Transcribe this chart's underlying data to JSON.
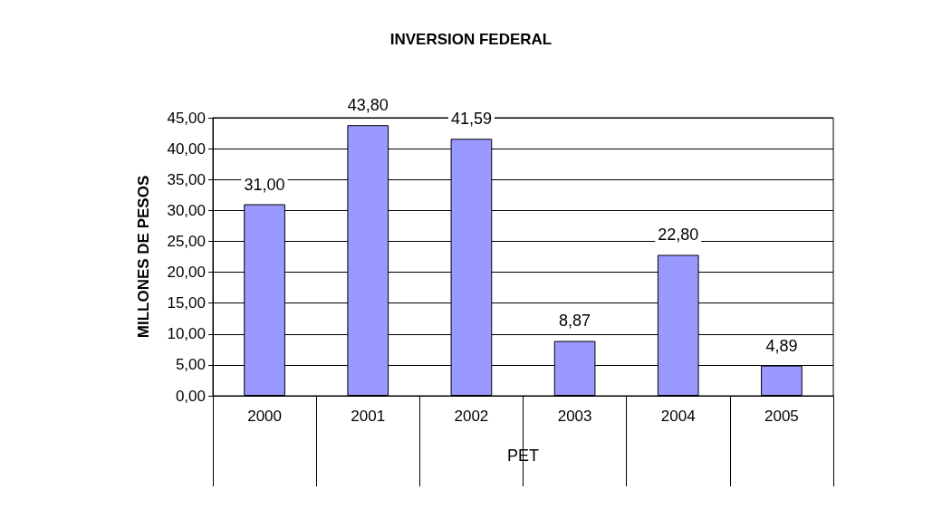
{
  "chart_data": {
    "type": "bar",
    "title": "INVERSION FEDERAL",
    "xlabel": "PET",
    "ylabel": "MILLONES DE PESOS",
    "categories": [
      "2000",
      "2001",
      "2002",
      "2003",
      "2004",
      "2005"
    ],
    "values": [
      31.0,
      43.8,
      41.59,
      8.87,
      22.8,
      4.89
    ],
    "value_labels": [
      "31,00",
      "43,80",
      "41,59",
      "8,87",
      "22,80",
      "4,89"
    ],
    "color": "#9999ff",
    "ylim": [
      0,
      45
    ],
    "yticks": [
      {
        "value": 0,
        "label": "0,00"
      },
      {
        "value": 5,
        "label": "5,00"
      },
      {
        "value": 10,
        "label": "10,00"
      },
      {
        "value": 15,
        "label": "15,00"
      },
      {
        "value": 20,
        "label": "20,00"
      },
      {
        "value": 25,
        "label": "25,00"
      },
      {
        "value": 30,
        "label": "30,00"
      },
      {
        "value": 35,
        "label": "35,00"
      },
      {
        "value": 40,
        "label": "40,00"
      },
      {
        "value": 45,
        "label": "45,00"
      }
    ],
    "grid": "y"
  }
}
